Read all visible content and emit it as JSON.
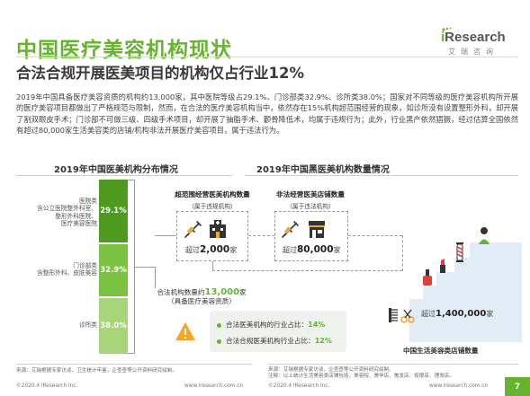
{
  "header": {
    "title": "中国医疗美容机构现状",
    "subtitle": "合法合规开展医美项目的机构仅占行业12%",
    "logo_brand_i": "i",
    "logo_brand_rest": "Research",
    "logo_sub": "艾瑞咨询"
  },
  "paragraph": "2019年中国具备医疗美容资质的机构约13,000家，其中医院等级占29.1%、门诊部类32.9%、诊所类38.0%；国家对不同等级的医疗美容机构所开展的医疗美容项目都做出了严格规范与限制，然而，在合法的医疗美容机构当中，依然存在15%机构超范围经营的现象，如诊所没有设置整形外科，却开展了割双眼皮手术；门诊部不可做三级、四级手术项目，却开展了抽脂手术、颧骨降低术，均属于违规行为；此外，行业黑产依然猖獗，经过估算全国依然有超过80,000家生活美容类的店铺/机构非法开展医疗美容项目，属于违法行为。",
  "left_chart": {
    "title": "2019年中国医美机构分布情况"
  },
  "chart_data": {
    "type": "bar",
    "title": "2019年中国医美机构分布情况",
    "categories": [
      "医院类",
      "门诊部类",
      "诊所类"
    ],
    "values": [
      29.1,
      32.9,
      38.0
    ],
    "value_labels": [
      "29.1%",
      "32.9%",
      "38.0%"
    ],
    "category_labels": [
      "医院类\n含公立医院整外科室、\n整形外科医院、\n医疗美容医院",
      "门诊部类\n含整形外科、皮肤美容",
      "诊所类"
    ],
    "unit": "%"
  },
  "middle": {
    "title": "2019年中国黑医美机构数量情况",
    "box1_title": "超范围经营医美机构数量",
    "box1_sub": "（属于违规机构）",
    "box1_prefix": "超过",
    "box1_value": "2,000",
    "box1_unit": "家",
    "box2_title": "非法经营医美店铺数量",
    "box2_sub": "（属于违法机构）",
    "box2_prefix": "超过",
    "box2_value": "80,000",
    "box2_unit": "家",
    "legal_prefix": "合法机构数量约",
    "legal_value": "13,000",
    "legal_unit": "家",
    "legal_sub": "（具备医疗美容资质）",
    "ratio1_label": "合法医美机构的行业占比：",
    "ratio1_value": "14%",
    "ratio2_label": "合法合规医美机构行业占比：",
    "ratio2_value": "12%"
  },
  "right": {
    "count_prefix": "超过",
    "count_value": "1,400,000",
    "count_unit": "家",
    "label": "中国生活美容类店铺数量"
  },
  "footer": {
    "source_left": "来源：艾瑞根据专家访谈，卫生统计年鉴，企查查等公开资料研究绘制。",
    "source_right_1": "来源：艾瑞根据专家访谈，企查查等公开资料研究绘制。",
    "source_right_2": "注释：以上统计生活美容类店铺包括，美容院、美甲店、美发店、按摩店、理发店。",
    "copy_left": "©2020.4 iResearch Inc.",
    "url_left": "www.iresearch.com.cn",
    "copy_right": "©2020.4 iResearch Inc.",
    "url_right": "www.iresearch.com.cn",
    "page": "7"
  },
  "colors": {
    "brand_green": "#66b32e",
    "dark_green": "#4e9a1e",
    "mid_green": "#7cc242",
    "light_green": "#a8d47a",
    "warning_orange": "#f5a623",
    "stair_blue": "#e2ecf7"
  },
  "icons": [
    "syringe-icon",
    "hospital-icon",
    "shop-icon",
    "warning-icon",
    "barber-pole-icon",
    "nail-polish-icon",
    "scissors-icon",
    "massage-person-icon",
    "lipstick-icon",
    "hair-comb-icon"
  ]
}
